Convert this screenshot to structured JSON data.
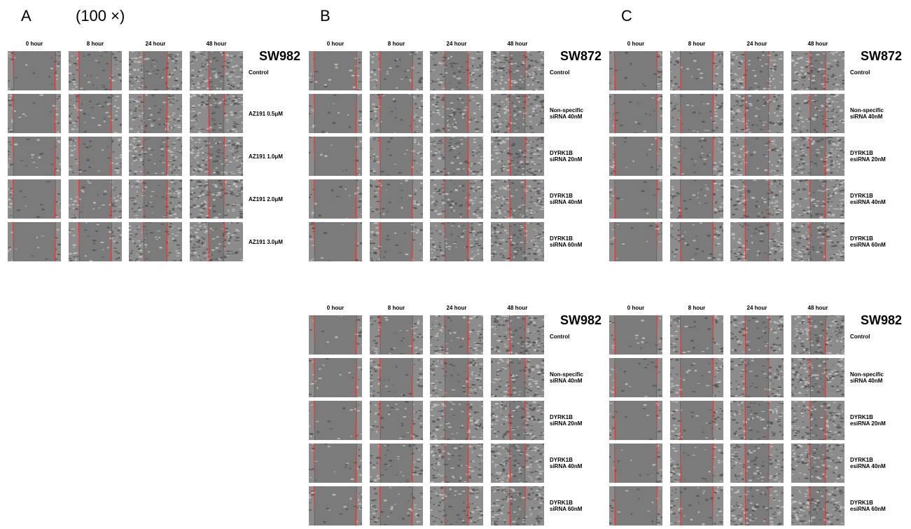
{
  "figure": {
    "letters": {
      "a": "A",
      "b": "B",
      "c": "C"
    },
    "magnification": "(100 ×)",
    "columns": [
      "0 hour",
      "8 hour",
      "24 hour",
      "48 hour"
    ],
    "panels": [
      {
        "id": "A",
        "cell_line": "SW982",
        "rows": [
          "Control",
          "AZ191 0.5μM",
          "AZ191 1.0μM",
          "AZ191 2.0μM",
          "AZ191 3.0μM"
        ]
      },
      {
        "id": "B-top",
        "cell_line": "SW872",
        "rows": [
          "Control",
          "Non-specific\nsiRNA 40nM",
          "DYRK1B\nsiRNA 20nM",
          "DYRK1B\nsiRNA 40nM",
          "DYRK1B\nsiRNA 60nM"
        ]
      },
      {
        "id": "C-top",
        "cell_line": "SW872",
        "rows": [
          "Control",
          "Non-specific\nsiRNA 40nM",
          "DYRK1B\nesiRNA 20nM",
          "DYRK1B\nesiRNA 40nM",
          "DYRK1B\nesiRNA 60nM"
        ]
      },
      {
        "id": "B-bottom",
        "cell_line": "SW982",
        "rows": [
          "Control",
          "Non-specific\nsiRNA 40nM",
          "DYRK1B\nsiRNA 20nM",
          "DYRK1B\nsiRNA 40nM",
          "DYRK1B\nsiRNA 60nM"
        ]
      },
      {
        "id": "C-bottom",
        "cell_line": "SW982",
        "rows": [
          "Control",
          "Non-specific\nsiRNA 40nM",
          "DYRK1B\nesiRNA 20nM",
          "DYRK1B\nesiRNA 40nM",
          "DYRK1B\nesiRNA 60nM"
        ]
      }
    ],
    "colors": {
      "scratch_line": "#e0302a",
      "cell_bg": "#8a8a8a"
    }
  }
}
